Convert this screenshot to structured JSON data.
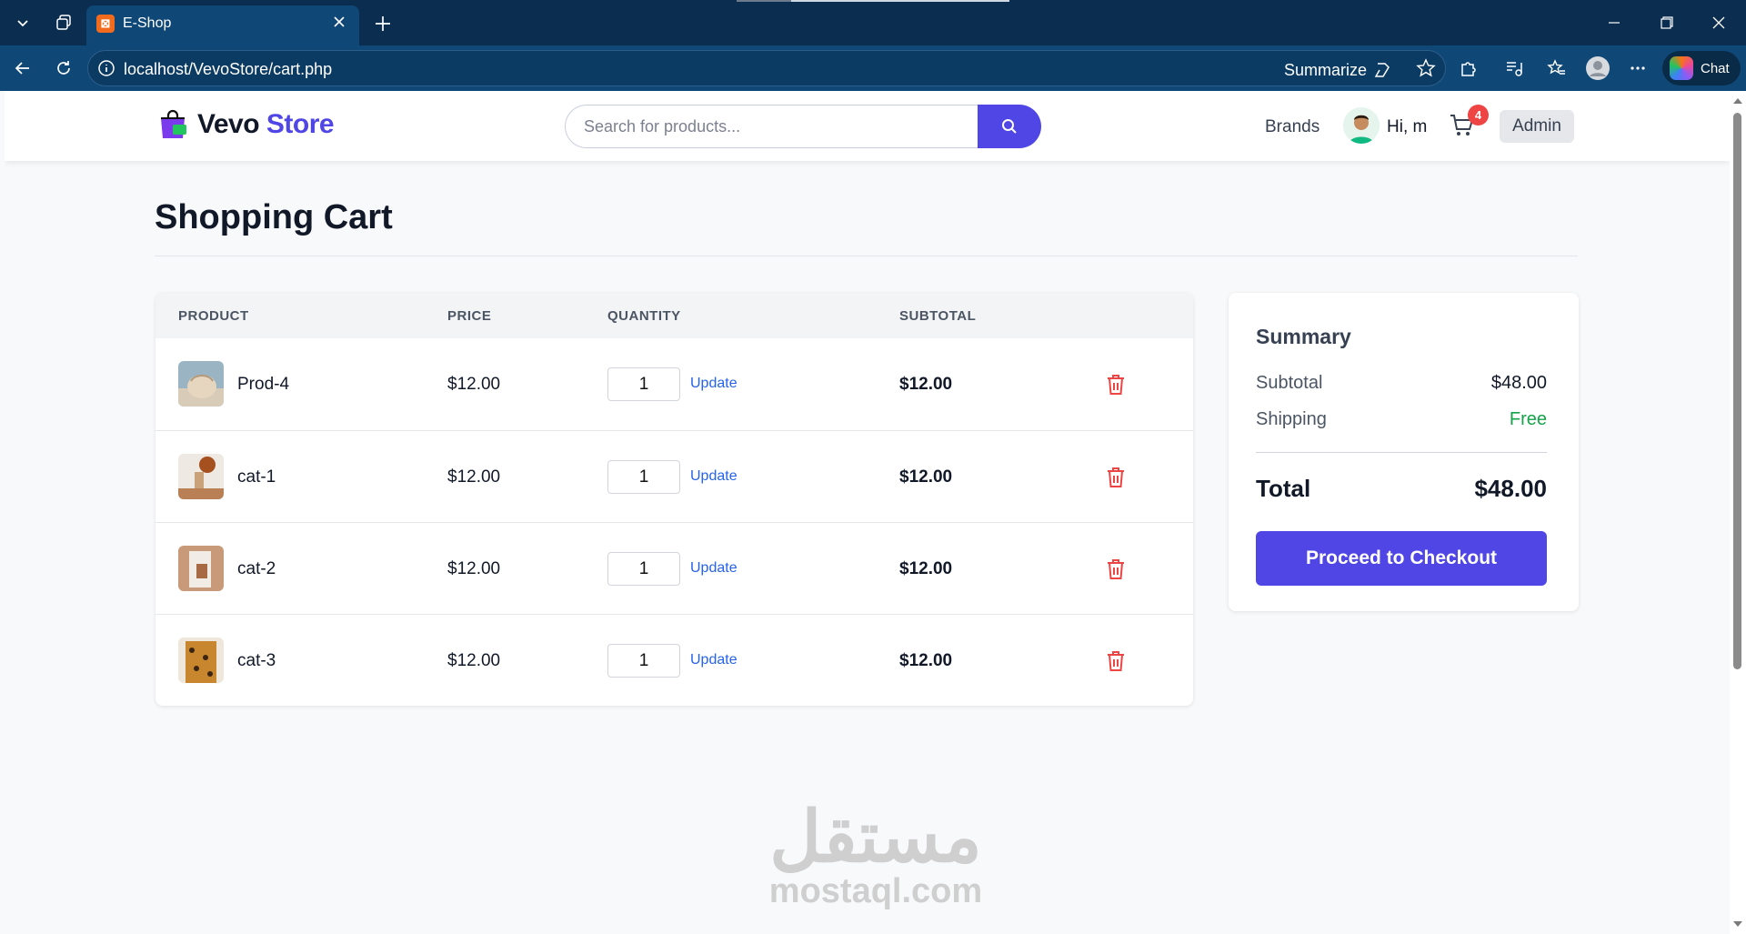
{
  "browser": {
    "tab_title": "E-Shop",
    "url": "localhost/VevoStore/cart.php",
    "summarize_label": "Summarize",
    "chat_label": "Chat"
  },
  "header": {
    "brand_main": "Vevo",
    "brand_accent": "Store",
    "search_placeholder": "Search for products...",
    "nav_brands": "Brands",
    "greeting": "Hi, m",
    "cart_count": "4",
    "admin_label": "Admin"
  },
  "page": {
    "title": "Shopping Cart"
  },
  "cart": {
    "columns": [
      "PRODUCT",
      "PRICE",
      "QUANTITY",
      "SUBTOTAL"
    ],
    "update_label": "Update",
    "items": [
      {
        "name": "Prod-4",
        "price": "$12.00",
        "quantity": "1",
        "subtotal": "$12.00"
      },
      {
        "name": "cat-1",
        "price": "$12.00",
        "quantity": "1",
        "subtotal": "$12.00"
      },
      {
        "name": "cat-2",
        "price": "$12.00",
        "quantity": "1",
        "subtotal": "$12.00"
      },
      {
        "name": "cat-3",
        "price": "$12.00",
        "quantity": "1",
        "subtotal": "$12.00"
      }
    ]
  },
  "summary": {
    "title": "Summary",
    "subtotal_label": "Subtotal",
    "subtotal_value": "$48.00",
    "shipping_label": "Shipping",
    "shipping_value": "Free",
    "total_label": "Total",
    "total_value": "$48.00",
    "checkout_label": "Proceed to Checkout"
  },
  "watermark": {
    "arabic": "مستقل",
    "latin": "mostaql.com"
  },
  "colors": {
    "accent": "#4f46e5",
    "danger": "#ef4444",
    "success": "#16a34a",
    "link": "#2563eb"
  }
}
